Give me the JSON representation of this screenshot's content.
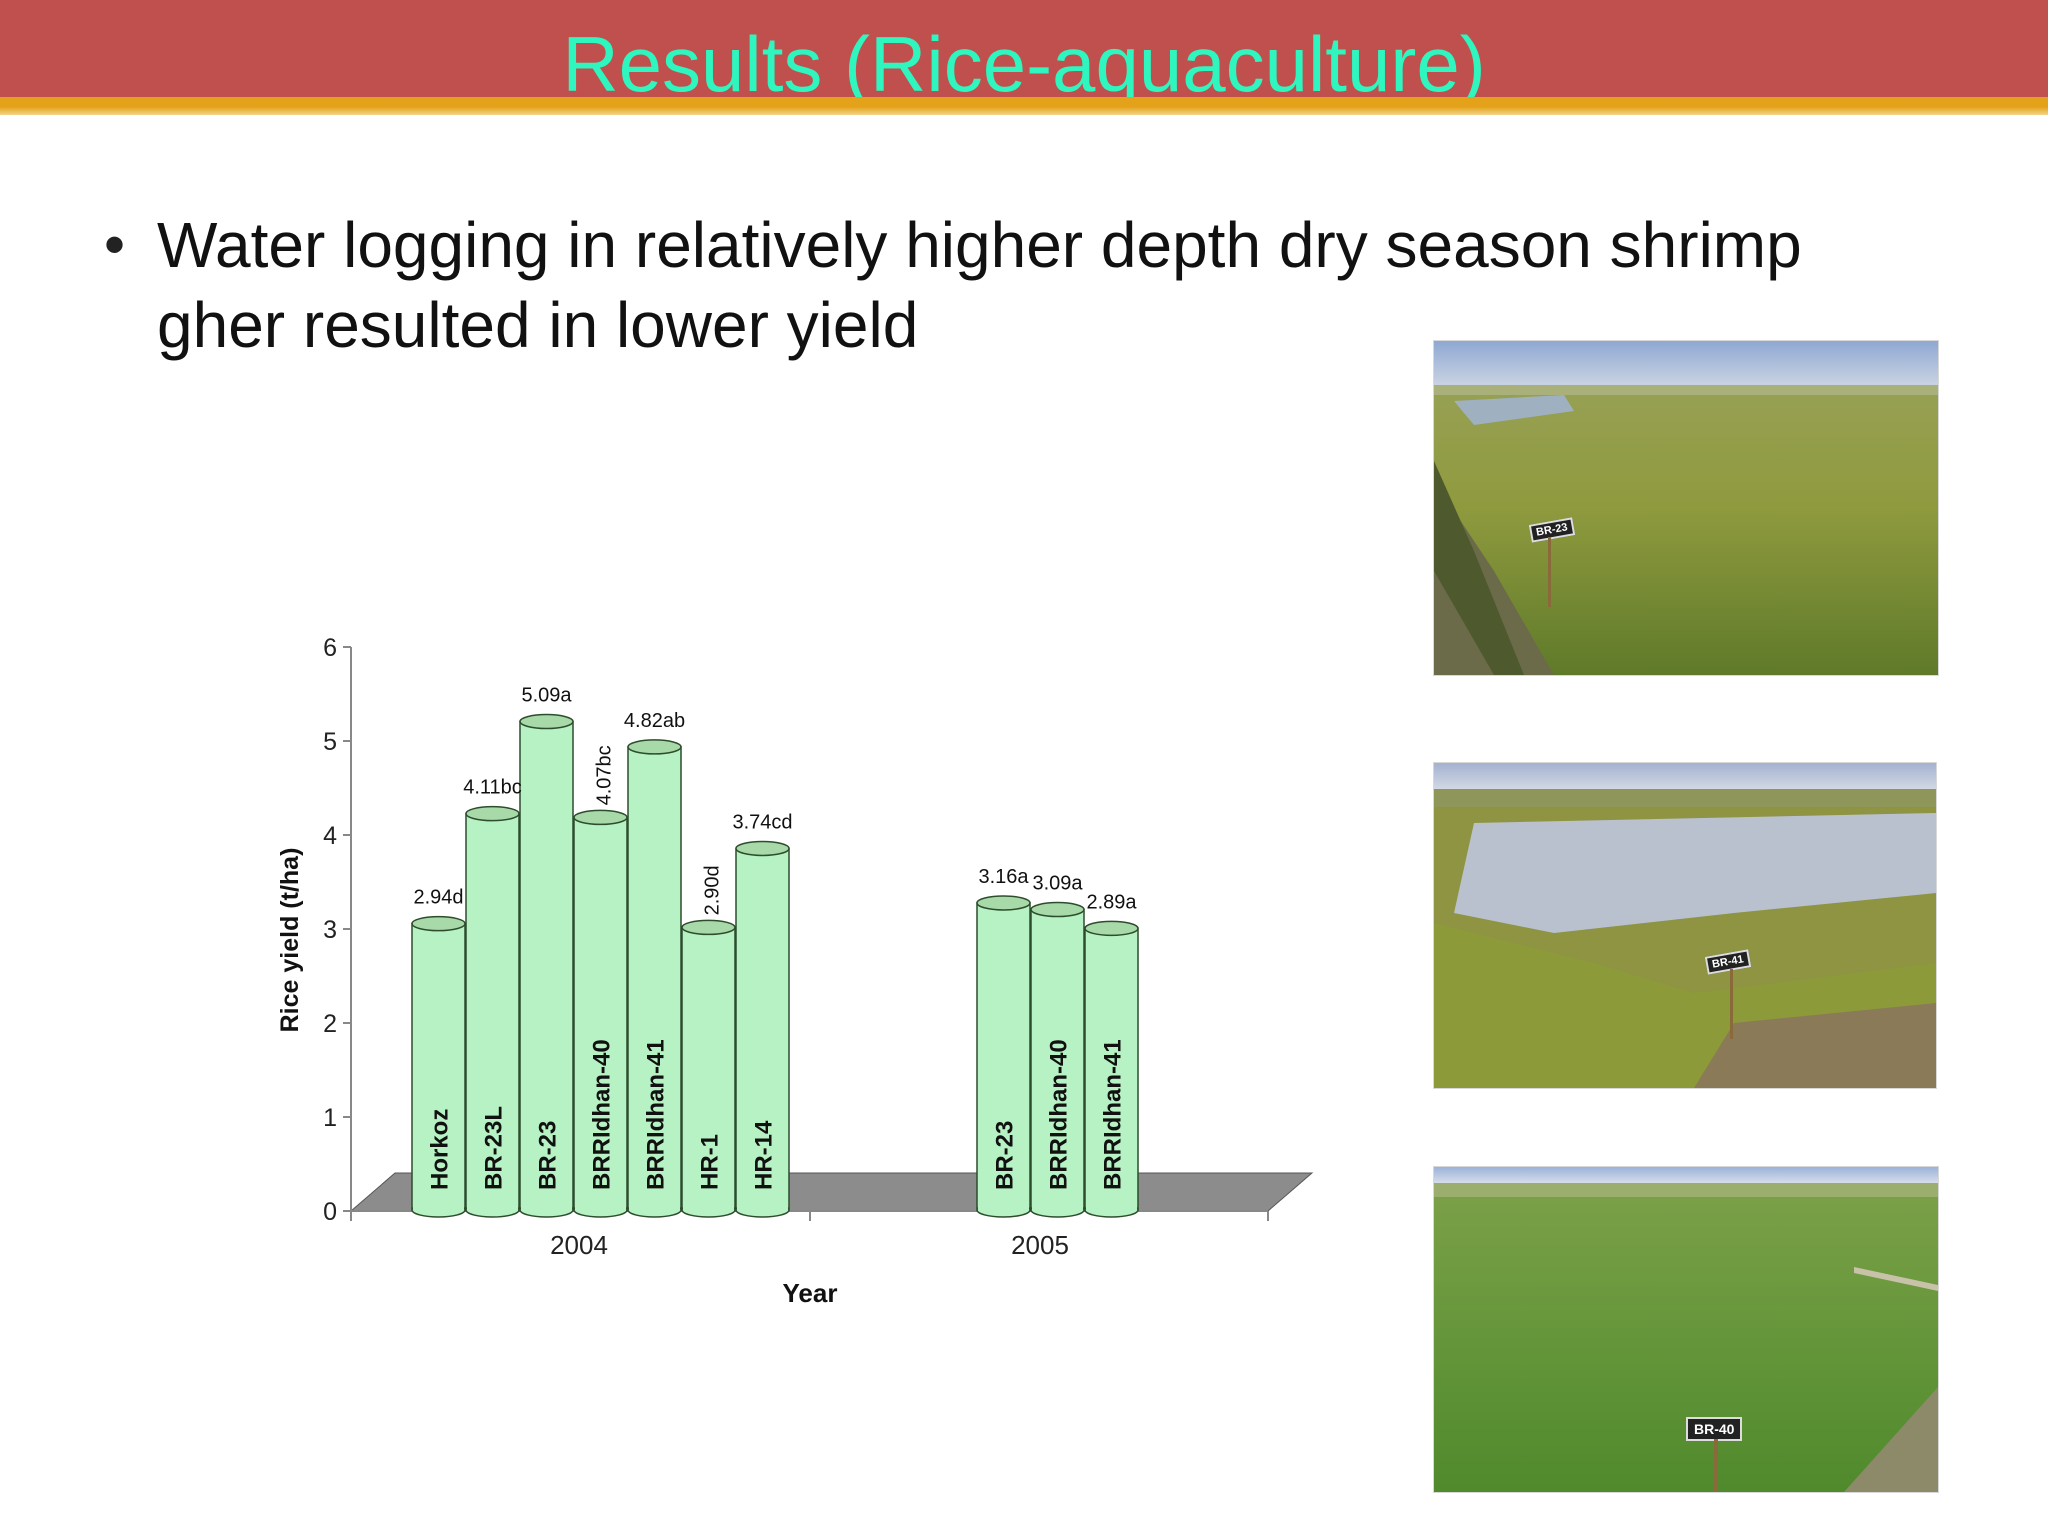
{
  "slide": {
    "title": "Results (Rice-aquaculture)",
    "bullet": "Water logging in relatively higher depth dry season shrimp gher resulted in lower yield"
  },
  "colors": {
    "header_band": "#c0504d",
    "header_stripe": "#e3a21a",
    "title_text": "#2ff5bf",
    "bar_fill": "#b6f2c3",
    "bar_top": "#a8d9a9",
    "floor": "#8c8c8c"
  },
  "chart_data": {
    "type": "bar",
    "style": "3d-cylinder",
    "xlabel": "Year",
    "ylabel": "Rice yield (t/ha)",
    "ylim": [
      0,
      6
    ],
    "yticks": [
      "0",
      "1",
      "2",
      "3",
      "4",
      "5",
      "6"
    ],
    "grid": false,
    "legend": "none",
    "groups": [
      {
        "year": "2004",
        "bars": [
          {
            "variety": "Horkoz",
            "value": 2.94,
            "label": "2.94d"
          },
          {
            "variety": "BR-23L",
            "value": 4.11,
            "label": "4.11bc"
          },
          {
            "variety": "BR-23",
            "value": 5.09,
            "label": "5.09a"
          },
          {
            "variety": "BRRIdhan-40",
            "value": 4.07,
            "label": "4.07bc"
          },
          {
            "variety": "BRRIdhan-41",
            "value": 4.82,
            "label": "4.82ab"
          },
          {
            "variety": "HR-1",
            "value": 2.9,
            "label": "2.90d"
          },
          {
            "variety": "HR-14",
            "value": 3.74,
            "label": "3.74cd"
          }
        ]
      },
      {
        "year": "2005",
        "bars": [
          {
            "variety": "BR-23",
            "value": 3.16,
            "label": "3.16a"
          },
          {
            "variety": "BRRIdhan-40",
            "value": 3.09,
            "label": "3.09a"
          },
          {
            "variety": "BRRIdhan-41",
            "value": 2.89,
            "label": "2.89a"
          }
        ]
      }
    ]
  },
  "photos": [
    {
      "name": "field-photo-br23",
      "sign_label": "BR-23"
    },
    {
      "name": "field-photo-br41",
      "sign_label": "BR-41"
    },
    {
      "name": "field-photo-br40",
      "sign_label": "BR-40"
    }
  ]
}
